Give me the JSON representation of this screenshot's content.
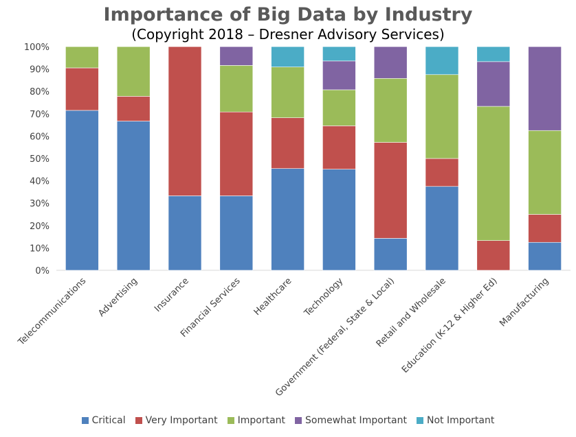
{
  "chart_data": {
    "type": "bar",
    "stacked": true,
    "title": "Importance of Big Data by Industry",
    "subtitle": "(Copyright 2018 – Dresner Advisory Services)",
    "xlabel": "",
    "ylabel": "",
    "ylim": [
      0,
      100
    ],
    "y_ticks": [
      "0%",
      "10%",
      "20%",
      "30%",
      "40%",
      "50%",
      "60%",
      "70%",
      "80%",
      "90%",
      "100%"
    ],
    "grid": false,
    "legend_position": "bottom",
    "categories": [
      "Telecommunications",
      "Advertising",
      "Insurance",
      "Financial Services",
      "Healthcare",
      "Technology",
      "Government (Federal, State & Local)",
      "Retail and Wholesale",
      "Education (K-12 & Higher Ed)",
      "Manufacturing"
    ],
    "series": [
      {
        "name": "Critical",
        "color": "#4f81bd",
        "values": [
          71.5,
          66.7,
          33.3,
          33.3,
          45.5,
          45.2,
          14.3,
          37.5,
          0,
          12.5
        ]
      },
      {
        "name": "Very Important",
        "color": "#c0504d",
        "values": [
          19.0,
          11.1,
          66.7,
          37.5,
          22.7,
          19.4,
          42.9,
          12.5,
          13.3,
          12.5
        ]
      },
      {
        "name": "Important",
        "color": "#9bbb59",
        "values": [
          9.5,
          22.2,
          0,
          20.8,
          22.7,
          16.1,
          28.6,
          37.5,
          60.0,
          37.5
        ]
      },
      {
        "name": "Somewhat Important",
        "color": "#8064a2",
        "values": [
          0,
          0,
          0,
          8.4,
          0,
          12.9,
          14.2,
          0,
          20.0,
          37.5
        ]
      },
      {
        "name": "Not Important",
        "color": "#4bacc6",
        "values": [
          0,
          0,
          0,
          0,
          9.1,
          6.4,
          0,
          12.5,
          6.7,
          0
        ]
      }
    ]
  }
}
